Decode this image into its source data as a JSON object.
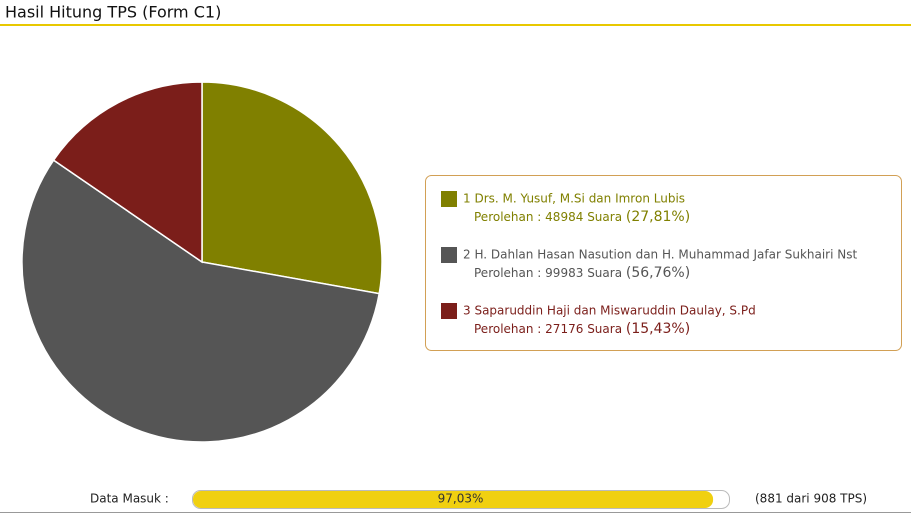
{
  "header": {
    "title": "Hasil Hitung TPS (Form C1)"
  },
  "chart_data": {
    "type": "pie",
    "categories": [
      "1 Drs. M. Yusuf, M.Si dan Imron Lubis",
      "2 H. Dahlan Hasan Nasution dan H. Muhammad Jafar Sukhairi Nst",
      "3 Saparuddin Haji dan Miswaruddin Daulay, S.Pd"
    ],
    "values": [
      48984,
      99983,
      27176
    ],
    "colors": [
      "#808000",
      "#555555",
      "#7b1e1a"
    ],
    "votes_prefix": "Perolehan :",
    "votes_unit": "Suara",
    "percent_labels": [
      "(27,81%)",
      "(56,76%)",
      "(15,43%)"
    ]
  },
  "progress": {
    "label": "Data Masuk :",
    "value": 97.03,
    "value_label": "97,03%",
    "lim": [
      0,
      100
    ],
    "note": "(881 dari 908 TPS)"
  }
}
